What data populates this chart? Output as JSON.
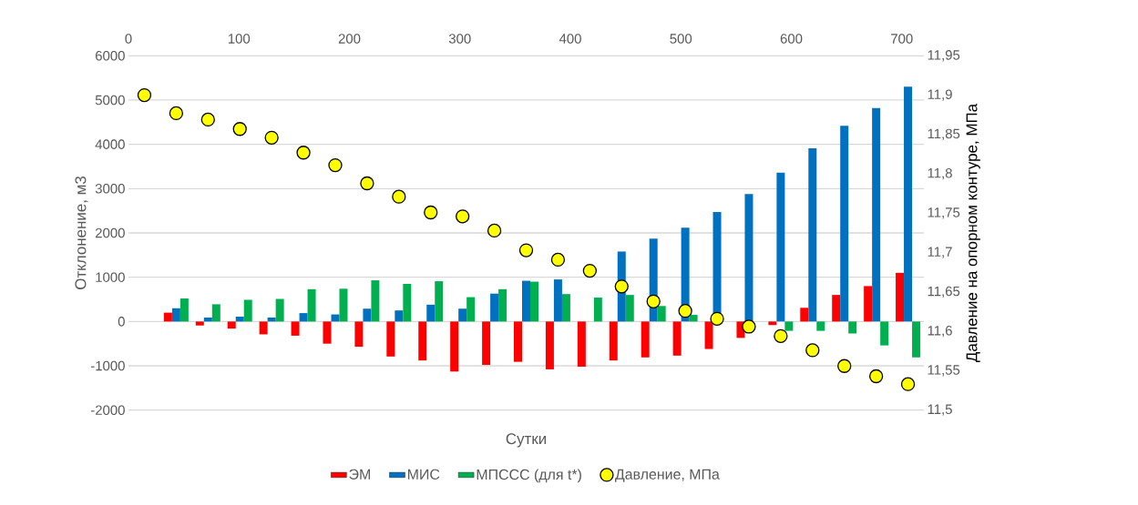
{
  "chart_data": {
    "type": "bar",
    "xlabel": "Сутки",
    "ylabel": "Отклонение, м3",
    "y2label": "Давление на опорном контуре, МПа",
    "categories": [
      null,
      null,
      null,
      null,
      null,
      null,
      null,
      null,
      null,
      null,
      null,
      null,
      null,
      null,
      null,
      null,
      null,
      null,
      null,
      null,
      null,
      null,
      null,
      null,
      null
    ],
    "series": [
      {
        "name": "ЭМ",
        "color": "#ff0000",
        "values": [
          null,
          200,
          -90,
          -160,
          -290,
          -320,
          -500,
          -570,
          -790,
          -880,
          -1130,
          -980,
          -910,
          -1080,
          -1020,
          -880,
          -810,
          -770,
          -620,
          -370,
          -80,
          310,
          600,
          800,
          1100
        ]
      },
      {
        "name": "МИС",
        "color": "#0070c0",
        "values": [
          null,
          300,
          90,
          110,
          90,
          190,
          160,
          290,
          250,
          380,
          290,
          630,
          920,
          950,
          null,
          1580,
          1870,
          2120,
          2470,
          2880,
          3360,
          3910,
          4420,
          4820,
          5300
        ]
      },
      {
        "name": "МПССС (для t*)",
        "color": "#00b050",
        "values": [
          null,
          520,
          390,
          490,
          510,
          730,
          740,
          930,
          850,
          910,
          550,
          730,
          900,
          620,
          540,
          600,
          350,
          150,
          null,
          null,
          -210,
          -210,
          -270,
          -540,
          -810
        ]
      },
      {
        "name": "Давление, МПа",
        "type": "scatter",
        "axis": "y2",
        "color": "#ffff00",
        "values": [
          11.9,
          11.877,
          11.869,
          11.857,
          11.846,
          11.827,
          11.811,
          11.788,
          11.771,
          11.751,
          11.746,
          11.728,
          11.703,
          11.691,
          11.677,
          11.657,
          11.638,
          11.626,
          11.616,
          11.606,
          11.594,
          11.576,
          11.556,
          11.543,
          11.533
        ]
      }
    ],
    "ylim": [
      -2000,
      6000
    ],
    "yticks": [
      -2000,
      -1000,
      0,
      1000,
      2000,
      3000,
      4000,
      5000,
      6000
    ],
    "y2lim": [
      11.5,
      11.95
    ],
    "y2ticks": [
      {
        "value": 11.5,
        "label": "11,5"
      },
      {
        "value": 11.55,
        "label": "11,55"
      },
      {
        "value": 11.6,
        "label": "11,6"
      },
      {
        "value": 11.65,
        "label": "11,65"
      },
      {
        "value": 11.7,
        "label": "11,7"
      },
      {
        "value": 11.75,
        "label": "11,75"
      },
      {
        "value": 11.8,
        "label": "11,8"
      },
      {
        "value": 11.85,
        "label": "11,85"
      },
      {
        "value": 11.9,
        "label": "11,9"
      },
      {
        "value": 11.95,
        "label": "11,95"
      }
    ],
    "x2lim": [
      0,
      720
    ],
    "x2ticks": [
      0,
      100,
      200,
      300,
      400,
      500,
      600,
      700
    ],
    "grid": "y",
    "legend": "bottom"
  }
}
